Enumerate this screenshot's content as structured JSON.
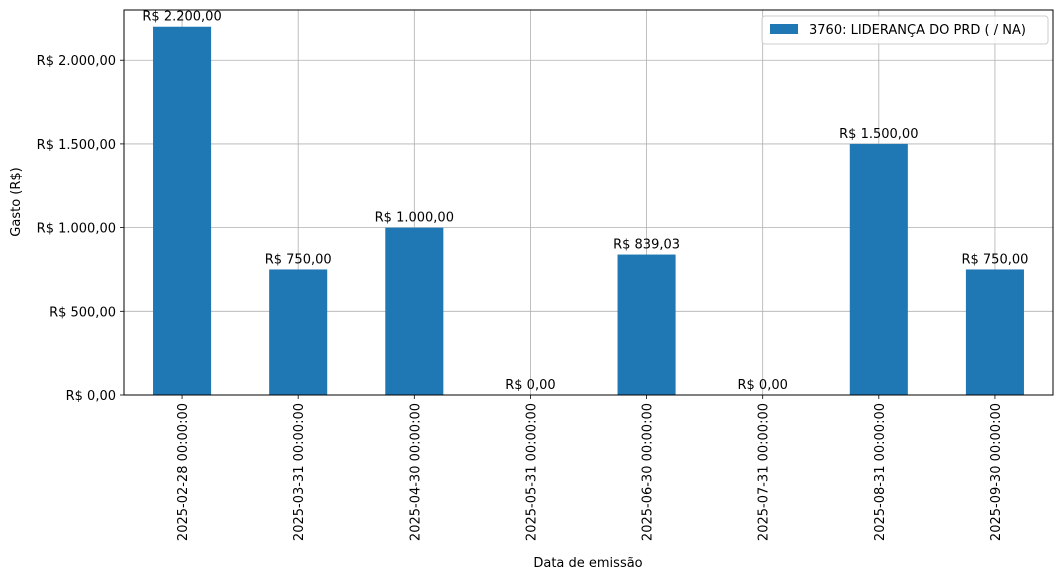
{
  "chart_data": {
    "type": "bar",
    "categories": [
      "2025-02-28 00:00:00",
      "2025-03-31 00:00:00",
      "2025-04-30 00:00:00",
      "2025-05-31 00:00:00",
      "2025-06-30 00:00:00",
      "2025-07-31 00:00:00",
      "2025-08-31 00:00:00",
      "2025-09-30 00:00:00"
    ],
    "series": [
      {
        "name": "3760: LIDERANÇA DO PRD ( / NA)",
        "color": "#1f77b4",
        "values": [
          2200,
          750,
          1000,
          0,
          839.03,
          0,
          1500,
          750
        ],
        "data_labels": [
          "R$ 2.200,00",
          "R$ 750,00",
          "R$ 1.000,00",
          "R$ 0,00",
          "R$ 839,03",
          "R$ 0,00",
          "R$ 1.500,00",
          "R$ 750,00"
        ]
      }
    ],
    "xlabel": "Data de emissão",
    "ylabel": "Gasto (R$)",
    "ylim": [
      0,
      2300
    ],
    "yticks": [
      0,
      500,
      1000,
      1500,
      2000
    ],
    "ytick_labels": [
      "R$ 0,00",
      "R$ 500,00",
      "R$ 1.000,00",
      "R$ 1.500,00",
      "R$ 2.000,00"
    ],
    "grid": true,
    "legend_position": "top-right"
  }
}
